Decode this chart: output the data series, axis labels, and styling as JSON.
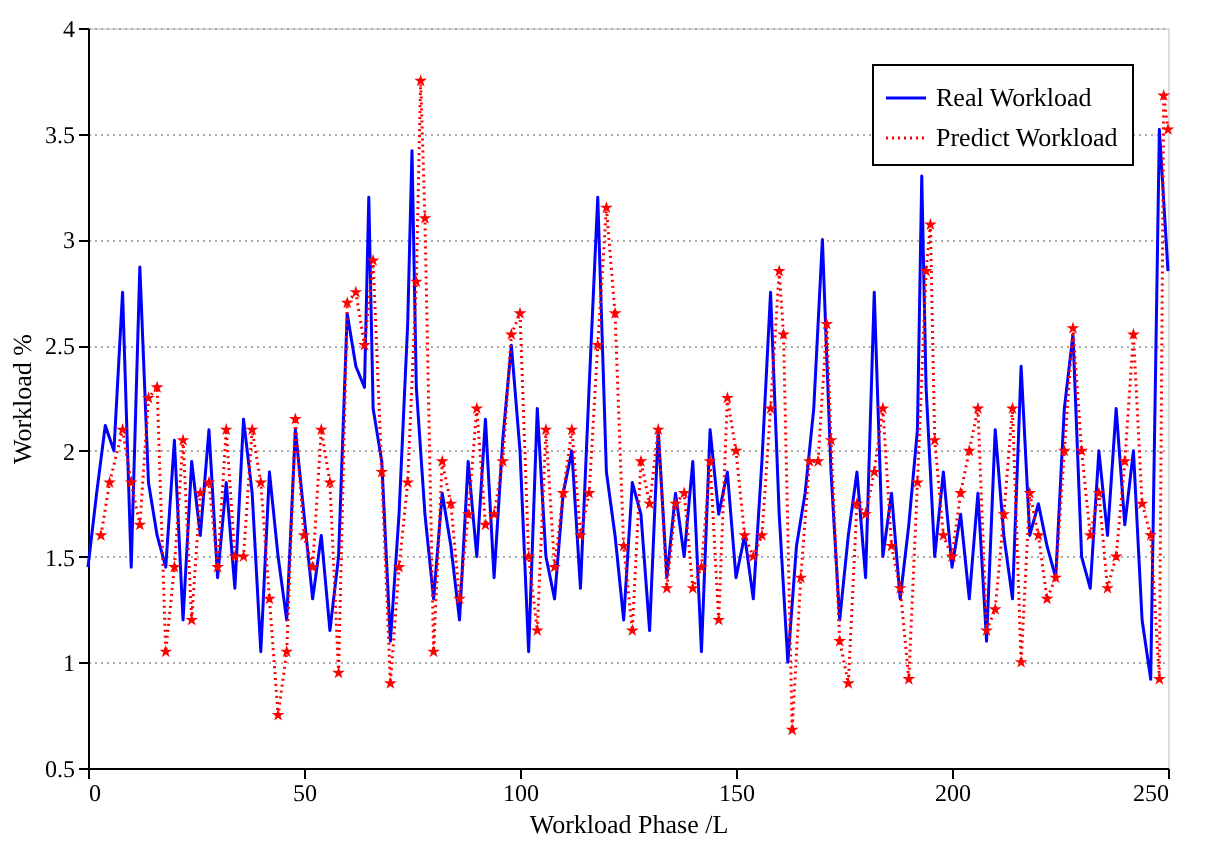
{
  "chart_data": {
    "type": "line",
    "xlabel": "Workload Phase /L",
    "ylabel": "Workload %",
    "xlim": [
      0,
      250
    ],
    "ylim": [
      0.5,
      4
    ],
    "xticks": [
      0,
      50,
      100,
      150,
      200,
      250
    ],
    "yticks": [
      0.5,
      1,
      1.5,
      2,
      2.5,
      3,
      3.5,
      4
    ],
    "grid": "y",
    "legend": "top right",
    "series": [
      {
        "name": "Real Workload",
        "color": "#0000ff",
        "marker": "none",
        "line_style": "solid",
        "x": [
          0,
          2,
          4,
          6,
          8,
          10,
          12,
          14,
          16,
          18,
          20,
          22,
          24,
          26,
          28,
          30,
          32,
          34,
          36,
          38,
          40,
          42,
          44,
          46,
          48,
          50,
          52,
          54,
          56,
          58,
          60,
          62,
          64,
          65,
          66,
          68,
          70,
          72,
          74,
          75,
          76,
          78,
          80,
          82,
          84,
          86,
          88,
          90,
          92,
          94,
          96,
          98,
          100,
          102,
          104,
          106,
          108,
          110,
          112,
          114,
          116,
          118,
          120,
          122,
          124,
          126,
          128,
          130,
          132,
          134,
          136,
          138,
          140,
          142,
          144,
          146,
          148,
          150,
          152,
          154,
          156,
          158,
          160,
          162,
          164,
          166,
          168,
          170,
          172,
          174,
          176,
          178,
          180,
          182,
          184,
          186,
          188,
          190,
          192,
          193,
          194,
          196,
          198,
          200,
          202,
          204,
          206,
          208,
          210,
          212,
          214,
          216,
          218,
          220,
          222,
          224,
          226,
          228,
          230,
          232,
          234,
          236,
          238,
          240,
          242,
          244,
          246,
          248,
          250
        ],
        "values": [
          1.45,
          1.8,
          2.12,
          2.0,
          2.75,
          1.45,
          2.87,
          1.85,
          1.6,
          1.45,
          2.05,
          1.2,
          1.95,
          1.6,
          2.1,
          1.4,
          1.85,
          1.35,
          2.15,
          1.8,
          1.05,
          1.9,
          1.5,
          1.2,
          2.1,
          1.7,
          1.3,
          1.6,
          1.15,
          1.5,
          2.65,
          2.4,
          2.3,
          3.2,
          2.2,
          1.95,
          1.1,
          1.7,
          2.6,
          3.42,
          2.3,
          1.7,
          1.3,
          1.8,
          1.55,
          1.2,
          1.95,
          1.5,
          2.15,
          1.4,
          2.05,
          2.5,
          2.0,
          1.05,
          2.2,
          1.5,
          1.3,
          1.8,
          2.0,
          1.35,
          2.3,
          3.2,
          1.9,
          1.6,
          1.2,
          1.85,
          1.7,
          1.15,
          2.1,
          1.4,
          1.8,
          1.5,
          1.95,
          1.05,
          2.1,
          1.7,
          1.9,
          1.4,
          1.6,
          1.3,
          1.95,
          2.75,
          1.7,
          1.0,
          1.55,
          1.8,
          2.2,
          3.0,
          1.9,
          1.2,
          1.6,
          1.9,
          1.4,
          2.75,
          1.5,
          1.8,
          1.3,
          1.65,
          2.1,
          3.3,
          2.3,
          1.5,
          1.9,
          1.45,
          1.7,
          1.3,
          1.8,
          1.1,
          2.1,
          1.6,
          1.3,
          2.4,
          1.6,
          1.75,
          1.55,
          1.4,
          2.2,
          2.55,
          1.5,
          1.35,
          2.0,
          1.6,
          2.2,
          1.65,
          2.0,
          1.2,
          0.92,
          3.52,
          2.85
        ]
      },
      {
        "name": "Predict Workload",
        "color": "#ff0000",
        "marker": "star",
        "line_style": "dotted",
        "x": [
          3,
          5,
          8,
          10,
          12,
          14,
          16,
          18,
          20,
          22,
          24,
          26,
          28,
          30,
          32,
          34,
          36,
          38,
          40,
          42,
          44,
          46,
          48,
          50,
          52,
          54,
          56,
          58,
          60,
          62,
          64,
          66,
          68,
          70,
          72,
          74,
          76,
          77,
          78,
          80,
          82,
          84,
          86,
          88,
          90,
          92,
          94,
          96,
          98,
          100,
          102,
          104,
          106,
          108,
          110,
          112,
          114,
          116,
          118,
          120,
          122,
          124,
          126,
          128,
          130,
          132,
          134,
          136,
          138,
          140,
          142,
          144,
          146,
          148,
          150,
          152,
          154,
          156,
          158,
          160,
          161,
          163,
          165,
          167,
          169,
          171,
          172,
          174,
          176,
          178,
          180,
          182,
          184,
          186,
          188,
          190,
          192,
          194,
          195,
          196,
          198,
          200,
          202,
          204,
          206,
          208,
          210,
          212,
          214,
          216,
          218,
          220,
          222,
          224,
          226,
          228,
          230,
          232,
          234,
          236,
          238,
          240,
          242,
          244,
          246,
          248,
          249,
          250
        ],
        "values": [
          1.6,
          1.85,
          2.1,
          1.85,
          1.65,
          2.25,
          2.3,
          1.05,
          1.45,
          2.05,
          1.2,
          1.8,
          1.85,
          1.45,
          2.1,
          1.5,
          1.5,
          2.1,
          1.85,
          1.3,
          0.75,
          1.05,
          2.15,
          1.6,
          1.45,
          2.1,
          1.85,
          0.95,
          2.7,
          2.75,
          2.5,
          2.9,
          1.9,
          0.9,
          1.45,
          1.85,
          2.8,
          3.75,
          3.1,
          1.05,
          1.95,
          1.75,
          1.3,
          1.7,
          2.2,
          1.65,
          1.7,
          1.95,
          2.55,
          2.65,
          1.5,
          1.15,
          2.1,
          1.45,
          1.8,
          2.1,
          1.6,
          1.8,
          2.5,
          3.15,
          2.65,
          1.55,
          1.15,
          1.95,
          1.75,
          2.1,
          1.35,
          1.75,
          1.8,
          1.35,
          1.45,
          1.95,
          1.2,
          2.25,
          2.0,
          1.6,
          1.5,
          1.6,
          2.2,
          2.85,
          2.55,
          0.68,
          1.4,
          1.95,
          1.95,
          2.6,
          2.05,
          1.1,
          0.9,
          1.75,
          1.7,
          1.9,
          2.2,
          1.55,
          1.35,
          0.92,
          1.85,
          2.85,
          3.07,
          2.05,
          1.6,
          1.5,
          1.8,
          2.0,
          2.2,
          1.15,
          1.25,
          1.7,
          2.2,
          1.0,
          1.8,
          1.6,
          1.3,
          1.4,
          2.0,
          2.58,
          2.0,
          1.6,
          1.8,
          1.35,
          1.5,
          1.95,
          2.55,
          1.75,
          1.6,
          0.92,
          3.68,
          3.52
        ]
      }
    ]
  }
}
